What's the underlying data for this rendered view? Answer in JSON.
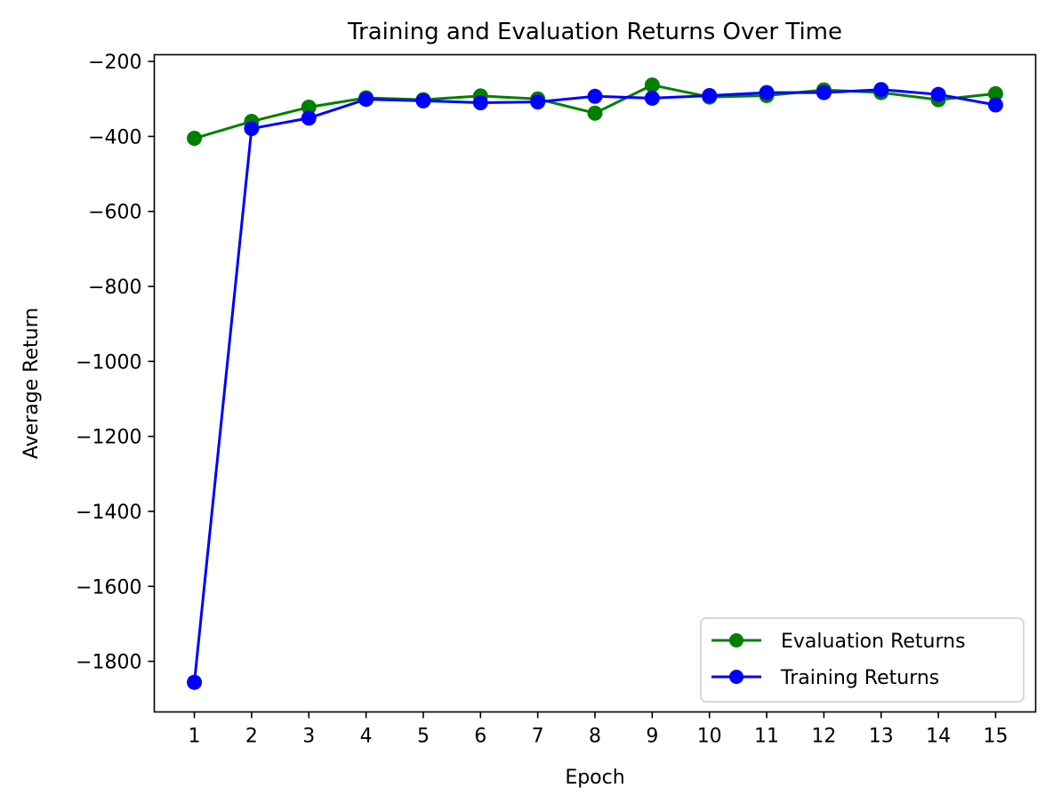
{
  "chart_data": {
    "type": "line",
    "title": "Training and Evaluation Returns Over Time",
    "xlabel": "Epoch",
    "ylabel": "Average Return",
    "x": [
      1,
      2,
      3,
      4,
      5,
      6,
      7,
      8,
      9,
      10,
      11,
      12,
      13,
      14,
      15
    ],
    "xlim": [
      0.3,
      15.7
    ],
    "ylim": [
      -1935,
      -182
    ],
    "x_ticks": [
      1,
      2,
      3,
      4,
      5,
      6,
      7,
      8,
      9,
      10,
      11,
      12,
      13,
      14,
      15
    ],
    "y_ticks": [
      -1800,
      -1600,
      -1400,
      -1200,
      -1000,
      -800,
      -600,
      -400,
      -200
    ],
    "grid": false,
    "legend_position": "lower right",
    "series": [
      {
        "name": "Evaluation Returns",
        "color": "#008000",
        "marker": "circle",
        "values": [
          -405,
          -360,
          -322,
          -297,
          -302,
          -292,
          -300,
          -338,
          -263,
          -295,
          -291,
          -276,
          -283,
          -302,
          -286
        ]
      },
      {
        "name": "Training Returns",
        "color": "#0000ff",
        "marker": "circle",
        "values": [
          -1856,
          -379,
          -351,
          -301,
          -305,
          -310,
          -308,
          -293,
          -298,
          -291,
          -283,
          -283,
          -275,
          -288,
          -316
        ]
      }
    ]
  }
}
